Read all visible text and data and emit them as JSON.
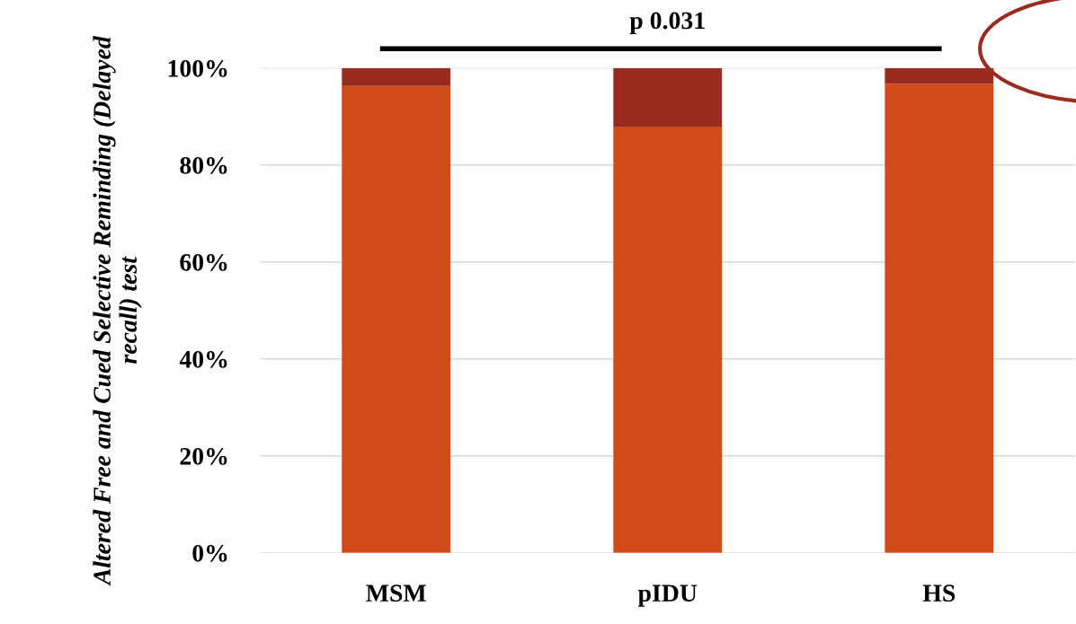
{
  "chart_data": {
    "type": "bar",
    "stacked": true,
    "ylabel": "Altered Free and Cued Selective Reminding (Delayed recall) test",
    "categories": [
      "MSM",
      "pIDU",
      "HS"
    ],
    "series": [
      {
        "color": "#d24a17",
        "values": [
          96.3,
          87.8,
          96.7
        ]
      },
      {
        "color": "#9a2b1f",
        "values": [
          3.7,
          12.2,
          3.3
        ]
      }
    ],
    "ylim": [
      0,
      100
    ],
    "yticks": [
      {
        "value": 0,
        "label": "0%"
      },
      {
        "value": 20,
        "label": "20%"
      },
      {
        "value": 40,
        "label": "40%"
      },
      {
        "value": 60,
        "label": "60%"
      },
      {
        "value": 80,
        "label": "80%"
      },
      {
        "value": 100,
        "label": "100%"
      }
    ],
    "grid": "y",
    "annotations": [
      "p 0.031"
    ]
  }
}
